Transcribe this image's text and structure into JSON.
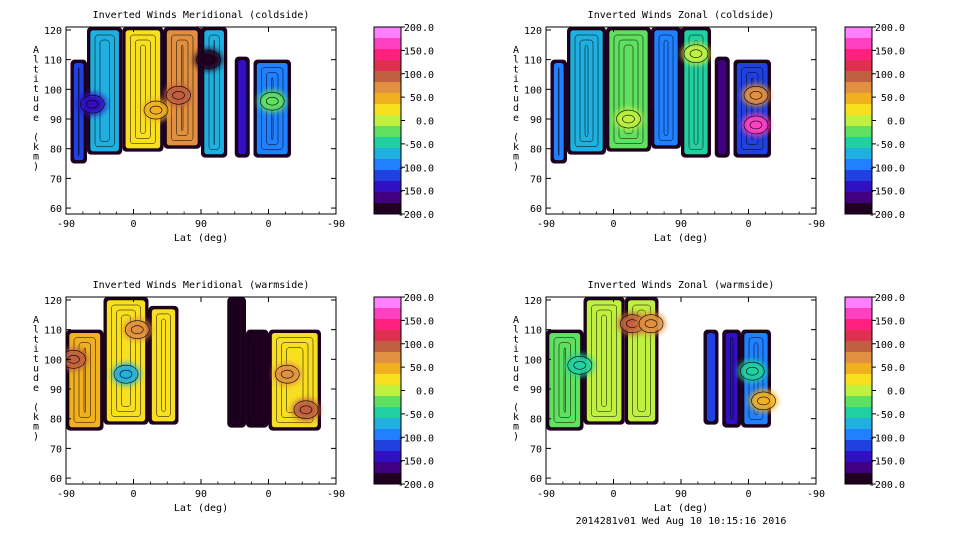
{
  "footer": "2014281v01 Wed Aug 10 10:15:16 2016",
  "colorbar": {
    "labels": [
      "200.0",
      "150.0",
      "100.0",
      "50.0",
      "0.0",
      "-50.0",
      "-100.0",
      "-150.0",
      "-200.0"
    ],
    "colors": [
      "#ff80ff",
      "#ff40c0",
      "#ff2080",
      "#e03050",
      "#c06040",
      "#e09040",
      "#f0b020",
      "#f8e020",
      "#c0f040",
      "#60e060",
      "#20d0a0",
      "#20b0e0",
      "#2080ff",
      "#2040e0",
      "#3010c0",
      "#400080",
      "#200020"
    ]
  },
  "chart_data": [
    {
      "type": "heatmap",
      "title": "Inverted Winds Meridional (coldside)",
      "xlabel": "Lat (deg)",
      "ylabel": "Altitude (km)",
      "xticks": [
        "-90",
        "0",
        "90",
        "0",
        "-90"
      ],
      "yticks": [
        "60",
        "70",
        "80",
        "90",
        "100",
        "110",
        "120"
      ],
      "ylim": [
        58,
        121
      ],
      "zlim": [
        -200,
        200
      ],
      "regions": [
        {
          "x": [
            -84,
            -62
          ],
          "y": [
            75,
            110
          ],
          "level": -120
        },
        {
          "x": [
            -62,
            -15
          ],
          "y": [
            78,
            121
          ],
          "level": -60
        },
        {
          "x": [
            -15,
            40
          ],
          "y": [
            79,
            121
          ],
          "level": 20
        },
        {
          "x": [
            40,
            90
          ],
          "y": [
            80,
            121
          ],
          "level": 60
        },
        {
          "x": [
            90,
            125
          ],
          "y": [
            77,
            121
          ],
          "level": -80
        },
        {
          "x": [
            135,
            155
          ],
          "y": [
            77,
            111
          ],
          "level": -150
        },
        {
          "x": [
            160,
            210
          ],
          "y": [
            77,
            110
          ],
          "level": -90
        }
      ],
      "spots": [
        {
          "x": 60,
          "y": 98,
          "level": 90
        },
        {
          "x": 30,
          "y": 93,
          "level": 40
        },
        {
          "x": -55,
          "y": 95,
          "level": -140
        },
        {
          "x": 185,
          "y": 96,
          "level": -20
        },
        {
          "x": 100,
          "y": 110,
          "level": -190
        }
      ]
    },
    {
      "type": "heatmap",
      "title": "Inverted Winds Zonal (coldside)",
      "xlabel": "Lat (deg)",
      "ylabel": "Altitude (km)",
      "xticks": [
        "-90",
        "0",
        "90",
        "0",
        "-90"
      ],
      "yticks": [
        "60",
        "70",
        "80",
        "90",
        "100",
        "110",
        "120"
      ],
      "ylim": [
        58,
        121
      ],
      "zlim": [
        -200,
        200
      ],
      "regions": [
        {
          "x": [
            -84,
            -62
          ],
          "y": [
            75,
            110
          ],
          "level": -100
        },
        {
          "x": [
            -62,
            -10
          ],
          "y": [
            78,
            121
          ],
          "level": -70
        },
        {
          "x": [
            -10,
            50
          ],
          "y": [
            79,
            121
          ],
          "level": -30
        },
        {
          "x": [
            50,
            90
          ],
          "y": [
            80,
            121
          ],
          "level": -90
        },
        {
          "x": [
            90,
            130
          ],
          "y": [
            77,
            121
          ],
          "level": -40
        },
        {
          "x": [
            135,
            155
          ],
          "y": [
            77,
            111
          ],
          "level": -160
        },
        {
          "x": [
            160,
            210
          ],
          "y": [
            77,
            110
          ],
          "level": -120
        }
      ],
      "spots": [
        {
          "x": 20,
          "y": 90,
          "level": 0
        },
        {
          "x": 190,
          "y": 88,
          "level": 160
        },
        {
          "x": 190,
          "y": 98,
          "level": 60
        },
        {
          "x": 110,
          "y": 112,
          "level": -10
        }
      ]
    },
    {
      "type": "heatmap",
      "title": "Inverted Winds Meridional (warmside)",
      "xlabel": "Lat (deg)",
      "ylabel": "Altitude (km)",
      "xticks": [
        "-90",
        "0",
        "90",
        "0",
        "-90"
      ],
      "yticks": [
        "60",
        "70",
        "80",
        "90",
        "100",
        "110",
        "120"
      ],
      "ylim": [
        58,
        121
      ],
      "zlim": [
        -200,
        200
      ],
      "regions": [
        {
          "x": [
            -90,
            -40
          ],
          "y": [
            76,
            110
          ],
          "level": 40
        },
        {
          "x": [
            -40,
            20
          ],
          "y": [
            78,
            121
          ],
          "level": 20
        },
        {
          "x": [
            20,
            60
          ],
          "y": [
            78,
            118
          ],
          "level": 30
        },
        {
          "x": [
            125,
            150
          ],
          "y": [
            77,
            121
          ],
          "level": -190
        },
        {
          "x": [
            150,
            180
          ],
          "y": [
            77,
            110
          ],
          "level": -200
        },
        {
          "x": [
            180,
            250
          ],
          "y": [
            76,
            110
          ],
          "level": 30
        }
      ],
      "spots": [
        {
          "x": -80,
          "y": 100,
          "level": 90
        },
        {
          "x": 5,
          "y": 110,
          "level": 60
        },
        {
          "x": -10,
          "y": 95,
          "level": -60
        },
        {
          "x": 230,
          "y": 83,
          "level": 100
        },
        {
          "x": 205,
          "y": 95,
          "level": 70
        }
      ]
    },
    {
      "type": "heatmap",
      "title": "Inverted Winds Zonal (warmside)",
      "xlabel": "Lat (deg)",
      "ylabel": "Altitude (km)",
      "xticks": [
        "-90",
        "0",
        "90",
        "0",
        "-90"
      ],
      "yticks": [
        "60",
        "70",
        "80",
        "90",
        "100",
        "110",
        "120"
      ],
      "ylim": [
        58,
        121
      ],
      "zlim": [
        -200,
        200
      ],
      "regions": [
        {
          "x": [
            -90,
            -40
          ],
          "y": [
            76,
            110
          ],
          "level": -20
        },
        {
          "x": [
            -40,
            15
          ],
          "y": [
            78,
            121
          ],
          "level": -10
        },
        {
          "x": [
            15,
            60
          ],
          "y": [
            78,
            121
          ],
          "level": 10
        },
        {
          "x": [
            120,
            140
          ],
          "y": [
            78,
            110
          ],
          "level": -120
        },
        {
          "x": [
            145,
            170
          ],
          "y": [
            77,
            110
          ],
          "level": -150
        },
        {
          "x": [
            170,
            210
          ],
          "y": [
            77,
            110
          ],
          "level": -90
        }
      ],
      "spots": [
        {
          "x": 25,
          "y": 112,
          "level": 90
        },
        {
          "x": 50,
          "y": 112,
          "level": 80
        },
        {
          "x": 200,
          "y": 86,
          "level": 50
        },
        {
          "x": 185,
          "y": 96,
          "level": -40
        },
        {
          "x": -45,
          "y": 98,
          "level": -50
        }
      ]
    }
  ]
}
